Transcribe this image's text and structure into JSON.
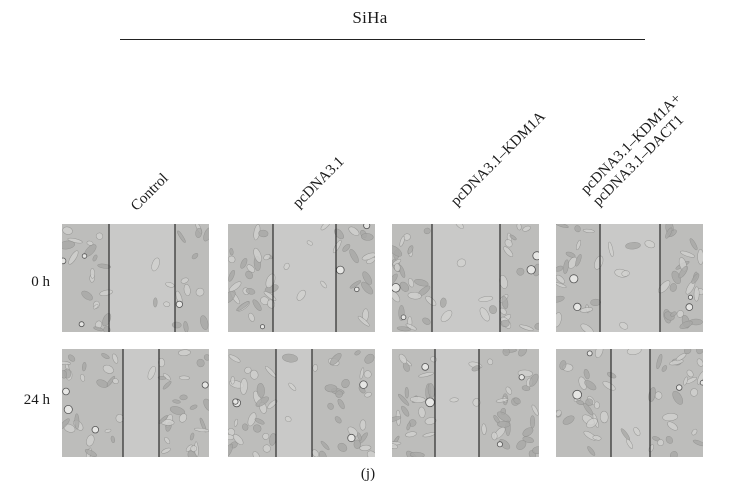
{
  "figure": {
    "title": "SiHa",
    "caption": "(j)",
    "columns": [
      {
        "id": "control",
        "lines": [
          "Control"
        ]
      },
      {
        "id": "pcdna31",
        "lines": [
          "pcDNA3.1"
        ]
      },
      {
        "id": "kdm1a",
        "lines": [
          "pcDNA3.1–KDM1A"
        ]
      },
      {
        "id": "kdm1a-dact1",
        "lines": [
          "pcDNA3.1–KDM1A+",
          "pcDNA3.1–DACT1"
        ]
      }
    ],
    "rows": [
      {
        "id": "0h",
        "label": "0 h"
      },
      {
        "id": "24h",
        "label": "24 h"
      }
    ]
  },
  "colors": {
    "background": "#ffffff",
    "cell_layer": "#bdbdbb",
    "wound_gap": "#c9c9c8",
    "edge_line": "#2b2b2b",
    "text": "#1a1a1a"
  }
}
